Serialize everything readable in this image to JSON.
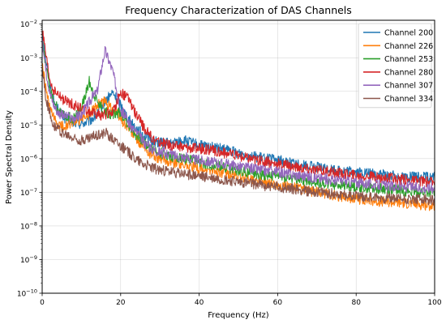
{
  "chart_data": {
    "type": "line",
    "title": "Frequency Characterization of DAS Channels",
    "xlabel": "Frequency (Hz)",
    "ylabel": "Power Spectral Density",
    "xlim": [
      0,
      100
    ],
    "ylim": [
      1e-10,
      0.013
    ],
    "yscale": "log",
    "grid": true,
    "legend": "top-right",
    "x_ticks": [
      "0",
      "20",
      "40",
      "60",
      "80",
      "100"
    ],
    "y_ticks": [
      {
        "base": "10",
        "exp": "−2"
      },
      {
        "base": "10",
        "exp": "−3"
      },
      {
        "base": "10",
        "exp": "−4"
      },
      {
        "base": "10",
        "exp": "−5"
      },
      {
        "base": "10",
        "exp": "−6"
      },
      {
        "base": "10",
        "exp": "−7"
      },
      {
        "base": "10",
        "exp": "−8"
      },
      {
        "base": "10",
        "exp": "−9"
      },
      {
        "base": "10",
        "exp": "−10"
      }
    ],
    "x": [
      0,
      1,
      2,
      3,
      4,
      5,
      6,
      8,
      10,
      12,
      14,
      16,
      18,
      20,
      22,
      24,
      26,
      28,
      30,
      33,
      36,
      40,
      45,
      50,
      55,
      60,
      65,
      70,
      75,
      80,
      85,
      90,
      95,
      100
    ],
    "series": [
      {
        "name": "Channel 200",
        "color": "#1f77b4",
        "values": [
          0.006,
          0.0008,
          0.00015,
          5e-05,
          3e-05,
          2e-05,
          1.5e-05,
          1.2e-05,
          1.1e-05,
          1.3e-05,
          2e-05,
          5e-05,
          9e-05,
          4e-05,
          1.5e-05,
          8e-06,
          5e-06,
          3.5e-06,
          3e-06,
          2.8e-06,
          3.5e-06,
          2.5e-06,
          2e-06,
          1.5e-06,
          1.1e-06,
          9e-07,
          7e-07,
          5.5e-07,
          4.5e-07,
          4e-07,
          3.5e-07,
          3e-07,
          2.8e-07,
          2.8e-07
        ]
      },
      {
        "name": "Channel 226",
        "color": "#ff7f0e",
        "values": [
          0.0006,
          0.0001,
          3e-05,
          1.5e-05,
          1e-05,
          9e-06,
          1e-05,
          1.2e-05,
          1.5e-05,
          2e-05,
          4e-05,
          5e-05,
          3e-05,
          1.5e-05,
          8e-06,
          4e-06,
          2e-06,
          1.3e-06,
          1e-06,
          8e-07,
          7e-07,
          5e-07,
          4e-07,
          3e-07,
          2.2e-07,
          1.7e-07,
          1.3e-07,
          1e-07,
          8e-08,
          6.5e-08,
          5.5e-08,
          5e-08,
          4.5e-08,
          4e-08
        ]
      },
      {
        "name": "Channel 253",
        "color": "#2ca02c",
        "values": [
          0.004,
          0.0005,
          0.0001,
          5e-05,
          3e-05,
          2e-05,
          1.8e-05,
          1.6e-05,
          3e-05,
          0.0002,
          5e-05,
          2.5e-05,
          2e-05,
          2.5e-05,
          1e-05,
          5e-06,
          3e-06,
          2e-06,
          1.5e-06,
          1.2e-06,
          1e-06,
          8e-07,
          6e-07,
          4.5e-07,
          3.5e-07,
          3e-07,
          2.5e-07,
          2e-07,
          1.7e-07,
          1.5e-07,
          1.3e-07,
          1.2e-07,
          1e-07,
          1e-07
        ]
      },
      {
        "name": "Channel 280",
        "color": "#d62728",
        "values": [
          0.007,
          0.001,
          0.0002,
          0.0001,
          8e-05,
          6e-05,
          5e-05,
          4e-05,
          3e-05,
          2.5e-05,
          2e-05,
          2e-05,
          2.5e-05,
          9e-05,
          6e-05,
          2e-05,
          8e-06,
          4e-06,
          3e-06,
          2.5e-06,
          2.2e-06,
          2e-06,
          1.6e-06,
          1.2e-06,
          9e-07,
          7e-07,
          5.5e-07,
          4.5e-07,
          3.8e-07,
          3.2e-07,
          2.8e-07,
          2.5e-07,
          2.2e-07,
          2e-07
        ]
      },
      {
        "name": "Channel 307",
        "color": "#9467bd",
        "values": [
          0.003,
          0.0004,
          9e-05,
          4e-05,
          2.5e-05,
          2e-05,
          1.8e-05,
          1.5e-05,
          2e-05,
          5e-05,
          0.0001,
          0.0017,
          0.0004,
          3e-05,
          1.2e-05,
          6e-06,
          3e-06,
          2e-06,
          1.6e-06,
          1.3e-06,
          1.1e-06,
          9e-07,
          7.5e-07,
          6e-07,
          4.8e-07,
          4e-07,
          3.3e-07,
          2.7e-07,
          2.3e-07,
          2e-07,
          1.7e-07,
          1.5e-07,
          1.4e-07,
          1.3e-07
        ]
      },
      {
        "name": "Channel 334",
        "color": "#8c564b",
        "values": [
          0.0005,
          6e-05,
          2e-05,
          1e-05,
          8e-06,
          6e-06,
          5e-06,
          4e-06,
          3.5e-06,
          4e-06,
          5e-06,
          6e-06,
          4e-06,
          2.5e-06,
          1.5e-06,
          1e-06,
          7e-07,
          5.5e-07,
          4.5e-07,
          4e-07,
          3.5e-07,
          3e-07,
          2.5e-07,
          2e-07,
          1.7e-07,
          1.4e-07,
          1.2e-07,
          1e-07,
          9e-08,
          8e-08,
          7e-08,
          6.5e-08,
          6e-08,
          6e-08
        ]
      }
    ]
  }
}
